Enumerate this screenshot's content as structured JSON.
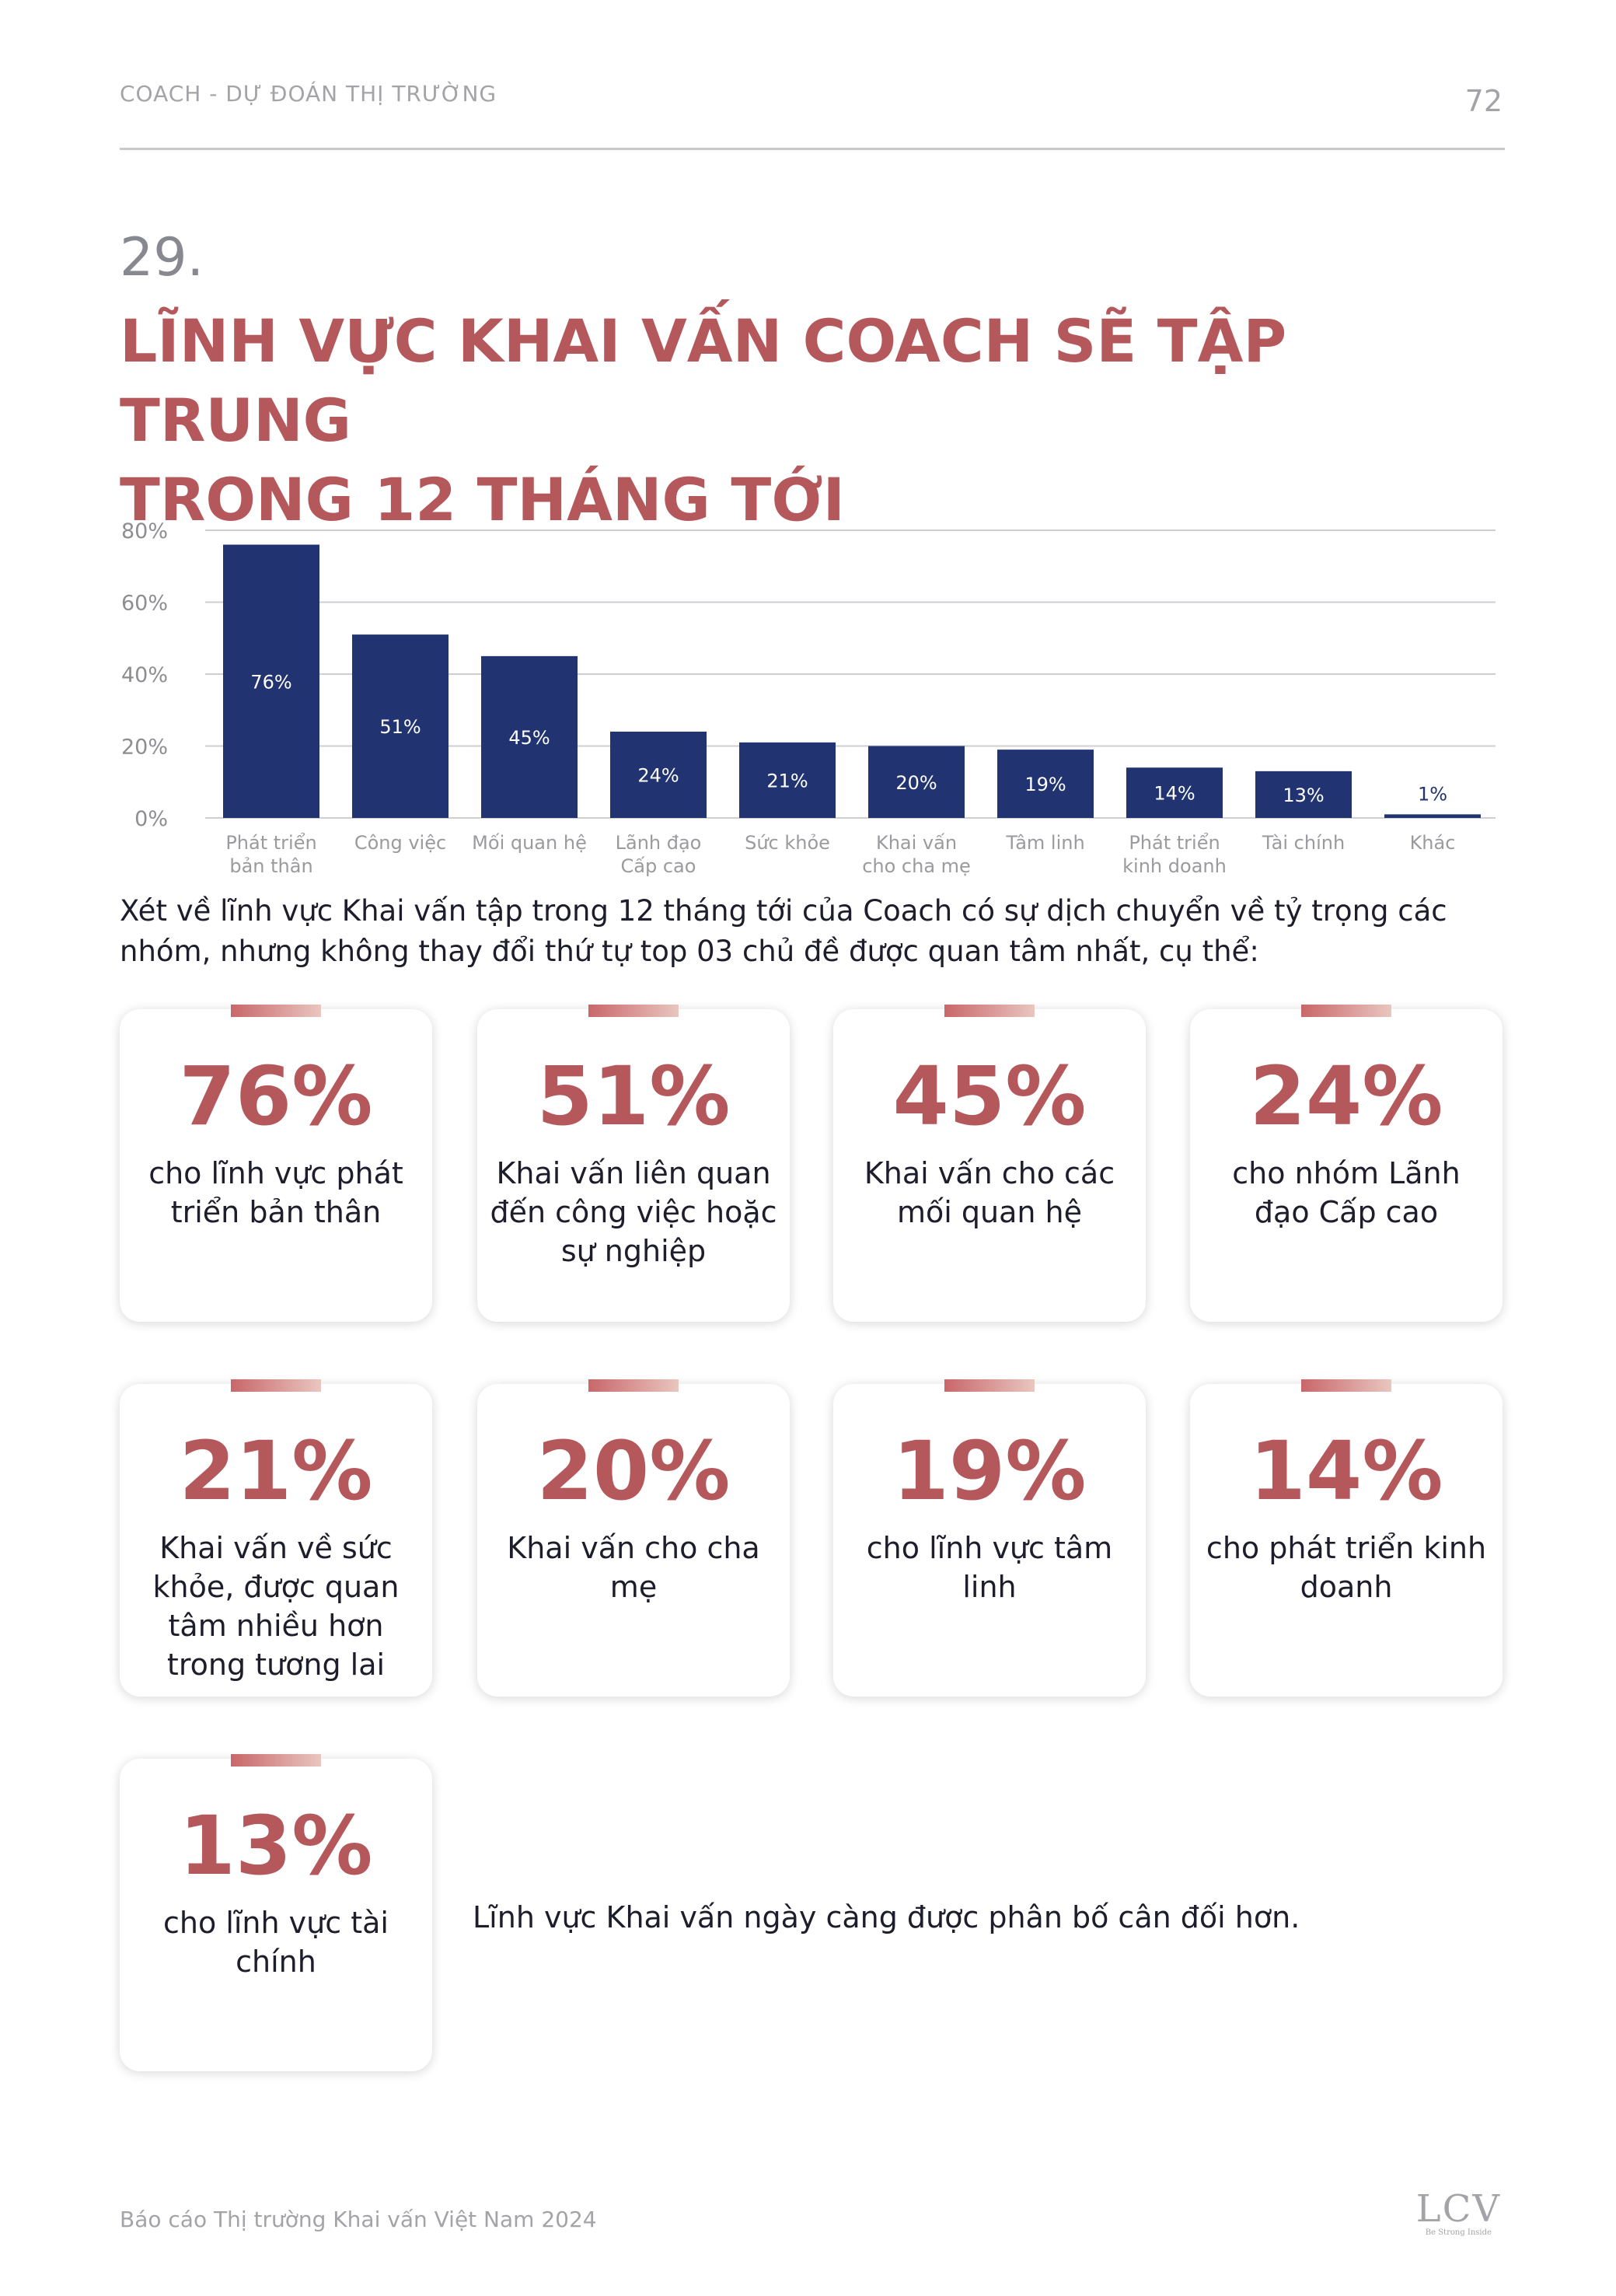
{
  "header": {
    "running_title": "COACH - DỰ ĐOÁN THỊ TRƯỜNG",
    "page_number": "72"
  },
  "section": {
    "number": "29.",
    "title_line1": "LĨNH VỰC KHAI VẤN COACH SẼ TẬP TRUNG",
    "title_line2": "TRONG 12 THÁNG TỚI"
  },
  "chart_data": {
    "type": "bar",
    "categories": [
      [
        "Phát triển",
        "bản thân"
      ],
      [
        "Công việc"
      ],
      [
        "Mối quan hệ"
      ],
      [
        "Lãnh đạo",
        "Cấp cao"
      ],
      [
        "Sức khỏe"
      ],
      [
        "Khai vấn",
        "cho cha mẹ"
      ],
      [
        "Tâm linh"
      ],
      [
        "Phát triển",
        "kinh doanh"
      ],
      [
        "Tài chính"
      ],
      [
        "Khác"
      ]
    ],
    "values": [
      76,
      51,
      45,
      24,
      21,
      20,
      19,
      14,
      13,
      1
    ],
    "value_labels": [
      "76%",
      "51%",
      "45%",
      "24%",
      "21%",
      "20%",
      "19%",
      "14%",
      "13%",
      "1%"
    ],
    "yticks": [
      0,
      20,
      40,
      60,
      80
    ],
    "ytick_labels": [
      "0%",
      "20%",
      "40%",
      "60%",
      "80%"
    ],
    "ylim": [
      0,
      80
    ],
    "grid": true,
    "bar_color": "#213370",
    "title": "",
    "xlabel": "",
    "ylabel": ""
  },
  "intro": "Xét về lĩnh vực Khai vấn tập trong 12 tháng tới của Coach có sự dịch chuyển về tỷ trọng các nhóm, nhưng không thay đổi thứ tự top 03 chủ đề được quan tâm nhất, cụ thể:",
  "cards": [
    {
      "percent": "76%",
      "description": "cho lĩnh vực phát triển bản thân"
    },
    {
      "percent": "51%",
      "description": "Khai vấn liên quan đến công việc hoặc sự nghiệp"
    },
    {
      "percent": "45%",
      "description": "Khai vấn cho các mối quan hệ"
    },
    {
      "percent": "24%",
      "description": "cho nhóm Lãnh đạo Cấp cao"
    },
    {
      "percent": "21%",
      "description": "Khai vấn về sức khỏe, được quan tâm nhiều hơn trong tương lai"
    },
    {
      "percent": "20%",
      "description": "Khai vấn cho cha mẹ"
    },
    {
      "percent": "19%",
      "description": "cho lĩnh vực tâm linh"
    },
    {
      "percent": "14%",
      "description": "cho phát triển kinh doanh"
    },
    {
      "percent": "13%",
      "description": "cho lĩnh vực tài chính"
    }
  ],
  "closing_note": "Lĩnh vực Khai vấn ngày càng được phân bố cân đối hơn.",
  "footer": {
    "report_name": "Báo cáo Thị trường Khai vấn Việt Nam 2024",
    "logo_text": "LCV",
    "logo_tagline": "Be Strong Inside"
  },
  "colors": {
    "accent": "#b5585c",
    "bar": "#213370",
    "grid": "#cfcfd3",
    "muted_text": "#a4a4a8"
  }
}
